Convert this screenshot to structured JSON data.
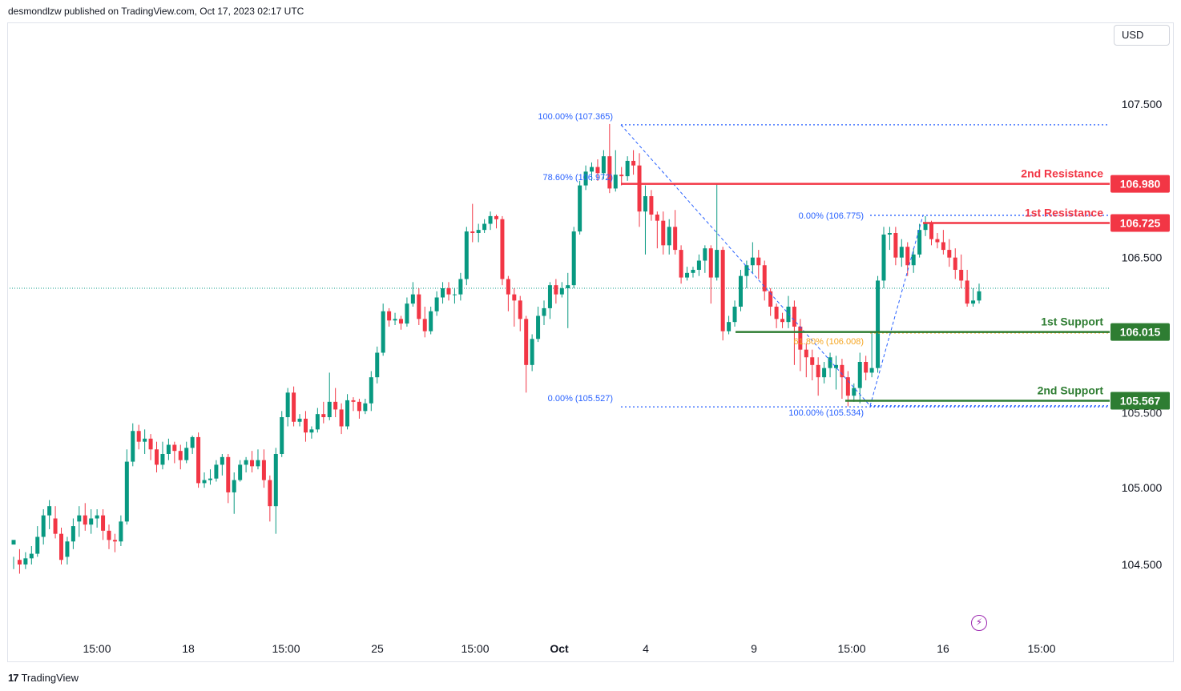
{
  "header": {
    "published": "desmondlzw published on TradingView.com, Oct 17, 2023 02:17 UTC"
  },
  "currency_button": "USD",
  "footer": {
    "logo_glyph": "17",
    "brand": "TradingView"
  },
  "icons": {
    "lightning": "lightning-icon"
  },
  "colors": {
    "up": "#089981",
    "down": "#f23645",
    "resistance": "#f23645",
    "support": "#2e7d32",
    "fib": "#2962ff",
    "fib_mid": "#f5a623"
  },
  "chart_data": {
    "type": "candlestick",
    "y_axis": {
      "ticks": [
        "107.500",
        "106.500",
        "105.000",
        "104.500"
      ],
      "tick_values": [
        107.5,
        106.5,
        105.0,
        104.5
      ],
      "range": [
        104.2,
        107.55
      ]
    },
    "x_axis": {
      "ticks": [
        "15:00",
        "18",
        "15:00",
        "25",
        "15:00",
        "Oct",
        "4",
        "9",
        "15:00",
        "16",
        "15:00"
      ]
    },
    "last_price_line": 106.3,
    "levels": [
      {
        "name": "2nd Resistance",
        "value": "106.980",
        "price": 106.98,
        "kind": "resistance"
      },
      {
        "name": "1st Resistance",
        "value": "106.725",
        "price": 106.725,
        "kind": "resistance"
      },
      {
        "name": "1st Support",
        "value": "106.015",
        "price": 106.015,
        "kind": "support"
      },
      {
        "name": "2nd Support",
        "value": "105.567",
        "price": 105.567,
        "kind": "support"
      }
    ],
    "fib_labels": [
      {
        "text": "100.00% (107.365)",
        "price": 107.365
      },
      {
        "text": "78.60% (106.972)",
        "price": 106.972
      },
      {
        "text": "0.00% (105.527)",
        "price": 105.527
      },
      {
        "text": "0.00% (106.775)",
        "price": 106.775
      },
      {
        "text": "61.80% (106.008)",
        "price": 106.008
      },
      {
        "text": "100.00% (105.534)",
        "price": 105.534
      }
    ],
    "candles": [
      [
        104.63,
        104.66,
        104.55,
        104.47
      ],
      [
        104.53,
        104.5,
        104.6,
        104.44
      ],
      [
        104.5,
        104.54,
        104.58,
        104.47
      ],
      [
        104.54,
        104.57,
        104.62,
        104.5
      ],
      [
        104.57,
        104.68,
        104.75,
        104.55
      ],
      [
        104.68,
        104.82,
        104.86,
        104.63
      ],
      [
        104.82,
        104.88,
        104.92,
        104.73
      ],
      [
        104.8,
        104.7,
        104.88,
        104.67
      ],
      [
        104.7,
        104.53,
        104.74,
        104.5
      ],
      [
        104.55,
        104.65,
        104.68,
        104.5
      ],
      [
        104.65,
        104.75,
        104.8,
        104.6
      ],
      [
        104.78,
        104.82,
        104.88,
        104.68
      ],
      [
        104.82,
        104.76,
        104.9,
        104.72
      ],
      [
        104.76,
        104.8,
        104.86,
        104.7
      ],
      [
        104.8,
        104.82,
        104.86,
        104.74
      ],
      [
        104.82,
        104.72,
        104.86,
        104.66
      ],
      [
        104.72,
        104.66,
        104.76,
        104.6
      ],
      [
        104.66,
        104.65,
        104.7,
        104.58
      ],
      [
        104.65,
        104.78,
        104.82,
        104.62
      ],
      [
        104.78,
        105.17,
        105.25,
        104.76
      ],
      [
        105.17,
        105.37,
        105.42,
        105.14
      ],
      [
        105.37,
        105.3,
        105.41,
        105.25
      ],
      [
        105.3,
        105.32,
        105.38,
        105.22
      ],
      [
        105.32,
        105.25,
        105.35,
        105.18
      ],
      [
        105.25,
        105.15,
        105.3,
        105.1
      ],
      [
        105.15,
        105.22,
        105.3,
        105.12
      ],
      [
        105.22,
        105.28,
        105.32,
        105.18
      ],
      [
        105.28,
        105.24,
        105.3,
        105.16
      ],
      [
        105.24,
        105.18,
        105.28,
        105.12
      ],
      [
        105.18,
        105.26,
        105.3,
        105.16
      ],
      [
        105.26,
        105.33,
        105.34,
        105.22
      ],
      [
        105.33,
        105.03,
        105.36,
        105.0
      ],
      [
        105.03,
        105.05,
        105.1,
        105.0
      ],
      [
        105.05,
        105.06,
        105.12,
        105.02
      ],
      [
        105.06,
        105.15,
        105.18,
        105.04
      ],
      [
        105.15,
        105.2,
        105.22,
        105.08
      ],
      [
        105.2,
        104.97,
        105.22,
        104.9
      ],
      [
        104.97,
        105.05,
        105.1,
        104.83
      ],
      [
        105.05,
        105.15,
        105.18,
        105.04
      ],
      [
        105.15,
        105.18,
        105.2,
        105.1
      ],
      [
        105.18,
        105.14,
        105.24,
        105.1
      ],
      [
        105.14,
        105.18,
        105.25,
        105.12
      ],
      [
        105.18,
        105.05,
        105.25,
        105.0
      ],
      [
        105.05,
        104.88,
        105.08,
        104.78
      ],
      [
        104.88,
        105.22,
        105.26,
        104.7
      ],
      [
        105.22,
        105.46,
        105.5,
        105.2
      ],
      [
        105.46,
        105.62,
        105.65,
        105.4
      ],
      [
        105.62,
        105.43,
        105.66,
        105.4
      ],
      [
        105.43,
        105.45,
        105.48,
        105.4
      ],
      [
        105.45,
        105.36,
        105.5,
        105.3
      ],
      [
        105.36,
        105.38,
        105.4,
        105.32
      ],
      [
        105.38,
        105.48,
        105.52,
        105.36
      ],
      [
        105.48,
        105.46,
        105.56,
        105.42
      ],
      [
        105.46,
        105.56,
        105.75,
        105.44
      ],
      [
        105.56,
        105.51,
        105.65,
        105.46
      ],
      [
        105.51,
        105.4,
        105.55,
        105.35
      ],
      [
        105.4,
        105.57,
        105.61,
        105.38
      ],
      [
        105.57,
        105.56,
        105.59,
        105.5
      ],
      [
        105.56,
        105.5,
        105.58,
        105.45
      ],
      [
        105.5,
        105.55,
        105.58,
        105.48
      ],
      [
        105.55,
        105.72,
        105.76,
        105.5
      ],
      [
        105.72,
        105.88,
        105.92,
        105.68
      ],
      [
        105.88,
        106.15,
        106.2,
        105.86
      ],
      [
        106.15,
        106.09,
        106.17,
        106.05
      ],
      [
        106.09,
        106.1,
        106.14,
        106.06
      ],
      [
        106.1,
        106.07,
        106.12,
        106.03
      ],
      [
        106.07,
        106.2,
        106.24,
        106.05
      ],
      [
        106.2,
        106.26,
        106.34,
        106.18
      ],
      [
        106.26,
        106.1,
        106.3,
        106.06
      ],
      [
        106.1,
        106.02,
        106.18,
        105.98
      ],
      [
        106.02,
        106.15,
        106.18,
        106.0
      ],
      [
        106.15,
        106.24,
        106.28,
        106.12
      ],
      [
        106.24,
        106.3,
        106.34,
        106.2
      ],
      [
        106.3,
        106.26,
        106.34,
        106.22
      ],
      [
        106.26,
        106.26,
        106.3,
        106.2
      ],
      [
        106.26,
        106.36,
        106.4,
        106.22
      ],
      [
        106.36,
        106.67,
        106.7,
        106.32
      ],
      [
        106.67,
        106.66,
        106.85,
        106.6
      ],
      [
        106.66,
        106.68,
        106.72,
        106.6
      ],
      [
        106.68,
        106.72,
        106.75,
        106.66
      ],
      [
        106.72,
        106.77,
        106.8,
        106.68
      ],
      [
        106.77,
        106.75,
        106.78,
        106.69
      ],
      [
        106.75,
        106.36,
        106.77,
        106.32
      ],
      [
        106.36,
        106.26,
        106.38,
        106.15
      ],
      [
        106.26,
        106.22,
        106.3,
        106.05
      ],
      [
        106.22,
        106.1,
        106.25,
        106.02
      ],
      [
        106.1,
        105.8,
        106.12,
        105.62
      ],
      [
        105.8,
        105.97,
        106.0,
        105.76
      ],
      [
        105.97,
        106.12,
        106.18,
        105.95
      ],
      [
        106.12,
        106.17,
        106.22,
        106.06
      ],
      [
        106.17,
        106.32,
        106.34,
        106.1
      ],
      [
        106.32,
        106.26,
        106.36,
        106.2
      ],
      [
        106.26,
        106.3,
        106.34,
        106.24
      ],
      [
        106.3,
        106.32,
        106.4,
        106.04
      ],
      [
        106.32,
        106.67,
        106.7,
        106.3
      ],
      [
        106.67,
        106.97,
        107.0,
        106.65
      ],
      [
        106.97,
        107.06,
        107.1,
        106.94
      ],
      [
        107.06,
        107.09,
        107.12,
        107.0
      ],
      [
        107.09,
        107.05,
        107.14,
        107.0
      ],
      [
        107.05,
        107.16,
        107.2,
        107.01
      ],
      [
        107.16,
        106.95,
        107.37,
        106.92
      ],
      [
        106.95,
        107.04,
        107.2,
        106.93
      ],
      [
        107.04,
        107.03,
        107.09,
        106.97
      ],
      [
        107.03,
        107.13,
        107.16,
        107.0
      ],
      [
        107.13,
        107.1,
        107.2,
        107.04
      ],
      [
        107.1,
        106.8,
        107.18,
        106.7
      ],
      [
        106.8,
        106.9,
        106.97,
        106.52
      ],
      [
        106.9,
        106.78,
        106.94,
        106.74
      ],
      [
        106.78,
        106.74,
        106.8,
        106.56
      ],
      [
        106.74,
        106.58,
        106.8,
        106.52
      ],
      [
        106.58,
        106.7,
        106.75,
        106.52
      ],
      [
        106.7,
        106.55,
        106.81,
        106.52
      ],
      [
        106.55,
        106.37,
        106.58,
        106.33
      ],
      [
        106.37,
        106.4,
        106.44,
        106.35
      ],
      [
        106.4,
        106.42,
        106.44,
        106.37
      ],
      [
        106.42,
        106.48,
        106.52,
        106.38
      ],
      [
        106.48,
        106.56,
        106.58,
        106.4
      ],
      [
        106.56,
        106.37,
        106.58,
        106.2
      ],
      [
        106.37,
        106.55,
        106.98,
        106.35
      ],
      [
        106.55,
        106.02,
        106.57,
        105.96
      ],
      [
        106.02,
        106.08,
        106.12,
        106.0
      ],
      [
        106.08,
        106.18,
        106.22,
        106.05
      ],
      [
        106.18,
        106.38,
        106.42,
        106.15
      ],
      [
        106.38,
        106.45,
        106.48,
        106.3
      ],
      [
        106.45,
        106.5,
        106.6,
        106.4
      ],
      [
        106.5,
        106.45,
        106.55,
        106.36
      ],
      [
        106.45,
        106.28,
        106.48,
        106.22
      ],
      [
        106.28,
        106.18,
        106.3,
        106.12
      ],
      [
        106.18,
        106.1,
        106.2,
        106.04
      ],
      [
        106.1,
        106.08,
        106.14,
        106.04
      ],
      [
        106.08,
        106.18,
        106.25,
        106.04
      ],
      [
        106.18,
        106.05,
        106.22,
        105.8
      ],
      [
        106.05,
        105.9,
        106.1,
        105.76
      ],
      [
        105.9,
        105.85,
        105.94,
        105.72
      ],
      [
        105.85,
        105.8,
        105.9,
        105.7
      ],
      [
        105.8,
        105.72,
        105.85,
        105.6
      ],
      [
        105.72,
        105.78,
        105.82,
        105.68
      ],
      [
        105.78,
        105.85,
        105.88,
        105.72
      ],
      [
        105.78,
        105.8,
        105.86,
        105.64
      ],
      [
        105.8,
        105.72,
        105.84,
        105.58
      ],
      [
        105.72,
        105.6,
        105.76,
        105.53
      ],
      [
        105.6,
        105.65,
        105.68,
        105.56
      ],
      [
        105.65,
        105.82,
        105.88,
        105.55
      ],
      [
        105.82,
        105.75,
        105.86,
        105.7
      ],
      [
        105.75,
        105.78,
        106.02,
        105.72
      ],
      [
        105.78,
        106.35,
        106.38,
        105.75
      ],
      [
        106.35,
        106.65,
        106.7,
        106.3
      ],
      [
        106.65,
        106.66,
        106.7,
        106.55
      ],
      [
        106.66,
        106.5,
        106.7,
        106.45
      ],
      [
        106.5,
        106.57,
        106.62,
        106.44
      ],
      [
        106.57,
        106.45,
        106.6,
        106.38
      ],
      [
        106.45,
        106.52,
        106.56,
        106.4
      ],
      [
        106.52,
        106.68,
        106.72,
        106.5
      ],
      [
        106.68,
        106.72,
        106.77,
        106.64
      ],
      [
        106.72,
        106.62,
        106.74,
        106.58
      ],
      [
        106.62,
        106.6,
        106.66,
        106.56
      ],
      [
        106.6,
        106.55,
        106.68,
        106.52
      ],
      [
        106.55,
        106.5,
        106.62,
        106.44
      ],
      [
        106.5,
        106.42,
        106.56,
        106.36
      ],
      [
        106.42,
        106.35,
        106.52,
        106.3
      ],
      [
        106.35,
        106.2,
        106.42,
        106.18
      ],
      [
        106.2,
        106.22,
        106.3,
        106.18
      ],
      [
        106.22,
        106.28,
        106.33,
        106.2
      ]
    ]
  }
}
